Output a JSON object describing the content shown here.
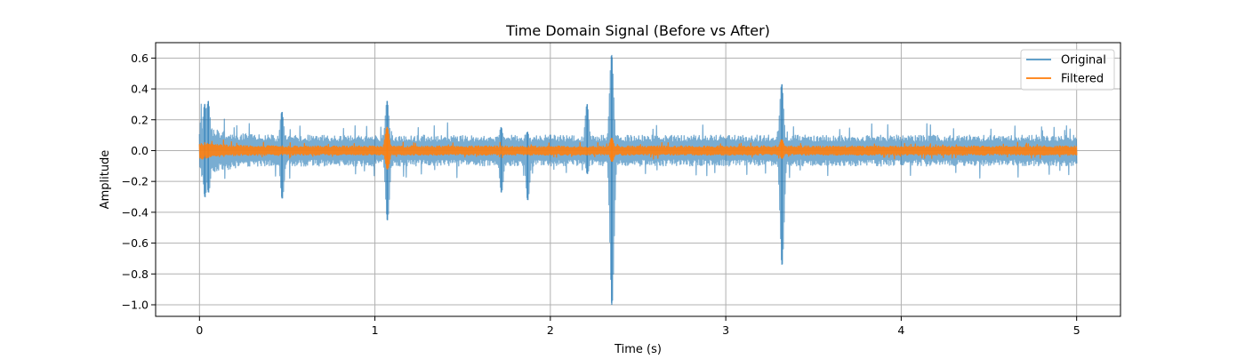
{
  "chart_data": {
    "type": "line",
    "title": "Time Domain Signal (Before vs After)",
    "xlabel": "Time (s)",
    "ylabel": "Amplitude",
    "xlim": [
      -0.25,
      5.25
    ],
    "ylim": [
      -1.075,
      0.7
    ],
    "xticks": [
      0,
      1,
      2,
      3,
      4,
      5
    ],
    "xtick_labels": [
      "0",
      "1",
      "2",
      "3",
      "4",
      "5"
    ],
    "yticks": [
      0.6,
      0.4,
      0.2,
      0.0,
      -0.2,
      -0.4,
      -0.6,
      -0.8,
      -1.0
    ],
    "ytick_labels": [
      "0.6",
      "0.4",
      "0.2",
      "0.0",
      "−0.2",
      "−0.4",
      "−0.6",
      "−0.8",
      "−1.0"
    ],
    "grid": true,
    "legend_position": "top-right",
    "series": [
      {
        "name": "Original",
        "color": "#1f77b4",
        "alpha": 0.6,
        "duration_s": 5.0,
        "noise_amplitude": 0.1,
        "spikes": [
          {
            "x": 0.03,
            "max": 0.3,
            "min": -0.3
          },
          {
            "x": 0.05,
            "max": 0.32,
            "min": -0.27
          },
          {
            "x": 0.47,
            "max": 0.25,
            "min": -0.31
          },
          {
            "x": 1.07,
            "max": 0.32,
            "min": -0.45
          },
          {
            "x": 1.72,
            "max": 0.15,
            "min": -0.27
          },
          {
            "x": 1.87,
            "max": 0.12,
            "min": -0.32
          },
          {
            "x": 2.21,
            "max": 0.3,
            "min": -0.15
          },
          {
            "x": 2.35,
            "max": 0.62,
            "min": -1.0
          },
          {
            "x": 3.32,
            "max": 0.43,
            "min": -0.74
          }
        ]
      },
      {
        "name": "Filtered",
        "color": "#ff7f0e",
        "alpha": 0.9,
        "duration_s": 5.0,
        "noise_amplitude": 0.03,
        "spikes": [
          {
            "x": 1.07,
            "max": 0.15,
            "min": -0.12
          },
          {
            "x": 2.35,
            "max": 0.08,
            "min": -0.07
          },
          {
            "x": 3.32,
            "max": 0.07,
            "min": -0.05
          }
        ]
      }
    ]
  }
}
